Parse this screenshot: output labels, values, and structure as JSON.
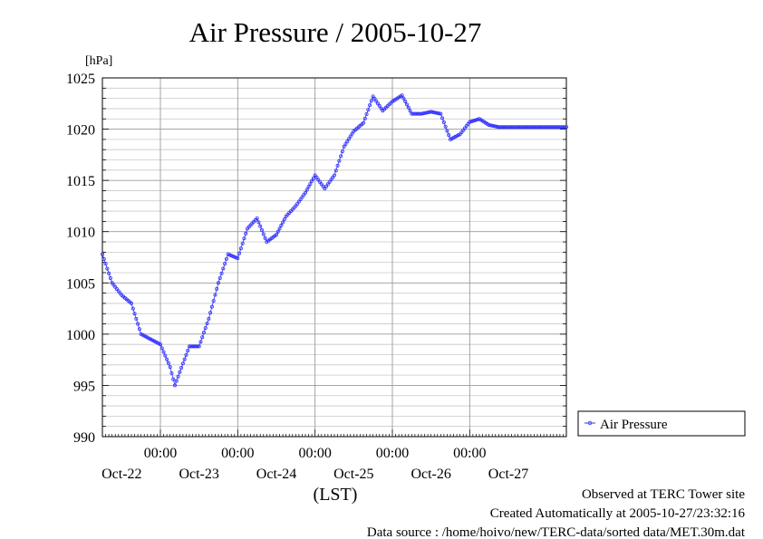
{
  "chart_data": {
    "type": "line",
    "title": "Air Pressure / 2005-10-27",
    "ylabel": "[hPa]",
    "xlabel": "(LST)",
    "ylim": [
      990,
      1025
    ],
    "yticks": [
      990,
      995,
      1000,
      1005,
      1010,
      1015,
      1020,
      1025
    ],
    "xlim": [
      0,
      6
    ],
    "x_unit": "days since Oct-21 19:00 LST",
    "xtick_positions": [
      0.75,
      1.75,
      2.75,
      3.75,
      4.75
    ],
    "xtick_time_label": "00:00",
    "day_labels": [
      "Oct-22",
      "Oct-23",
      "Oct-24",
      "Oct-25",
      "Oct-26",
      "Oct-27"
    ],
    "grid": true,
    "legend": {
      "position": "right",
      "entries": [
        "Air Pressure"
      ]
    },
    "series": [
      {
        "name": "Air Pressure",
        "color": "#3333ff",
        "x": [
          0,
          0.125,
          0.25,
          0.375,
          0.5,
          0.625,
          0.75,
          0.875,
          0.9375,
          1.0,
          1.125,
          1.25,
          1.375,
          1.5,
          1.625,
          1.75,
          1.875,
          2.0,
          2.125,
          2.25,
          2.375,
          2.5,
          2.625,
          2.75,
          2.875,
          3.0,
          3.125,
          3.25,
          3.375,
          3.5,
          3.625,
          3.75,
          3.875,
          4.0,
          4.125,
          4.25,
          4.375,
          4.5,
          4.625,
          4.75,
          4.875,
          5.0,
          5.125,
          5.25,
          5.375,
          5.5,
          5.625,
          5.75,
          5.875,
          6.0
        ],
        "y": [
          1007.8,
          1005.0,
          1003.8,
          1003.0,
          1000.0,
          999.5,
          999.0,
          996.8,
          995.0,
          996.3,
          998.8,
          998.8,
          1001.5,
          1005.0,
          1007.8,
          1007.4,
          1010.3,
          1011.3,
          1009.0,
          1009.7,
          1011.5,
          1012.5,
          1013.8,
          1015.5,
          1014.2,
          1015.5,
          1018.3,
          1019.8,
          1020.6,
          1023.2,
          1021.8,
          1022.7,
          1023.3,
          1021.5,
          1021.5,
          1021.7,
          1021.5,
          1019.0,
          1019.5,
          1020.7,
          1021.0,
          1020.4,
          1020.2,
          1020.2,
          1020.2,
          1020.2,
          1020.2,
          1020.2,
          1020.2,
          1020.2
        ]
      }
    ]
  },
  "footer": {
    "observed": "Observed at TERC Tower site",
    "created": "Created Automatically at 2005-10-27/23:32:16",
    "source": "Data source : /home/hoivo/new/TERC-data/sorted  data/MET.30m.dat"
  }
}
